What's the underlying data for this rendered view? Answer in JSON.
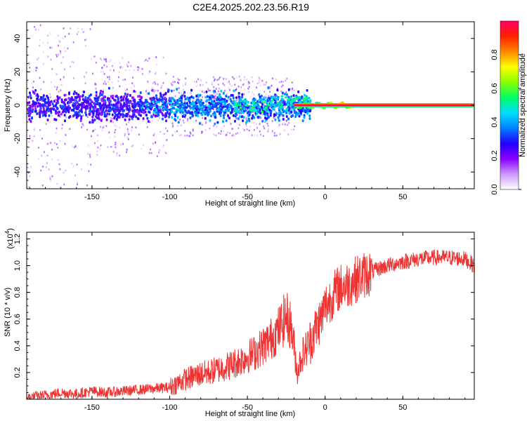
{
  "title": "C2E4.2025.202.23.56.R19",
  "chart_data": [
    {
      "type": "heatmap",
      "xlabel": "Height of straight line (km)",
      "ylabel": "Frequency (Hz)",
      "xlim": [
        -192,
        96
      ],
      "ylim": [
        -50,
        50
      ],
      "x_ticks": [
        -150,
        -100,
        -50,
        0,
        50
      ],
      "x_tick_labels": [
        "-150",
        "-100",
        "-50",
        "0",
        "50"
      ],
      "y_ticks": [
        -40,
        -20,
        0,
        20,
        40
      ],
      "y_tick_labels": [
        "-40",
        "-20",
        "0",
        "20",
        "40"
      ],
      "colorbar": {
        "label": "Normalized spectral amplitude",
        "range": [
          0,
          1
        ],
        "ticks": [
          0.0,
          0.2,
          0.4,
          0.6,
          0.8
        ],
        "tick_labels": [
          "0.0",
          "0.2",
          "0.4",
          "0.6",
          "0.8"
        ],
        "colormap": [
          "#ffffff",
          "#cc99ff",
          "#8800ff",
          "#2200ff",
          "#0080ff",
          "#00ddff",
          "#00ff66",
          "#88ff00",
          "#ffff00",
          "#ff8800",
          "#ff2200",
          "#ff0066"
        ]
      },
      "dominant_line": {
        "frequency": 0,
        "x_start": -20,
        "x_end": 96,
        "amplitude": 1.0
      }
    },
    {
      "type": "line",
      "xlabel": "Height of straight line (km)",
      "ylabel": "SNR (10 * v/v)",
      "multiplier_label": "(x10",
      "multiplier_exp": "4",
      "xlim": [
        -192,
        96
      ],
      "ylim": [
        0,
        1.25
      ],
      "x_ticks": [
        -150,
        -100,
        -50,
        0,
        50
      ],
      "x_tick_labels": [
        "-150",
        "-100",
        "-50",
        "0",
        "50"
      ],
      "y_ticks": [
        0.2,
        0.4,
        0.6,
        0.8,
        1.0,
        1.2
      ],
      "y_tick_labels": [
        "0.2",
        "0.4",
        "0.6",
        "0.8",
        "1.0",
        "1.2"
      ],
      "color": "#ee3333",
      "x": [
        -192,
        -180,
        -170,
        -160,
        -150,
        -140,
        -130,
        -120,
        -110,
        -100,
        -95,
        -90,
        -85,
        -80,
        -75,
        -70,
        -65,
        -60,
        -55,
        -50,
        -45,
        -40,
        -35,
        -30,
        -25,
        -22,
        -20,
        -18,
        -15,
        -12,
        -10,
        -8,
        -5,
        -2,
        0,
        2,
        5,
        8,
        10,
        15,
        20,
        25,
        30,
        35,
        40,
        50,
        60,
        70,
        80,
        90,
        96
      ],
      "y": [
        0.01,
        0.03,
        0.05,
        0.04,
        0.06,
        0.05,
        0.06,
        0.07,
        0.08,
        0.09,
        0.12,
        0.15,
        0.17,
        0.19,
        0.2,
        0.22,
        0.24,
        0.26,
        0.29,
        0.32,
        0.35,
        0.4,
        0.45,
        0.52,
        0.62,
        0.55,
        0.4,
        0.2,
        0.33,
        0.38,
        0.42,
        0.48,
        0.55,
        0.62,
        0.7,
        0.72,
        0.78,
        0.82,
        0.84,
        0.86,
        0.9,
        0.93,
        0.95,
        0.98,
        1.0,
        1.03,
        1.05,
        1.06,
        1.06,
        1.05,
        1.0
      ]
    }
  ]
}
